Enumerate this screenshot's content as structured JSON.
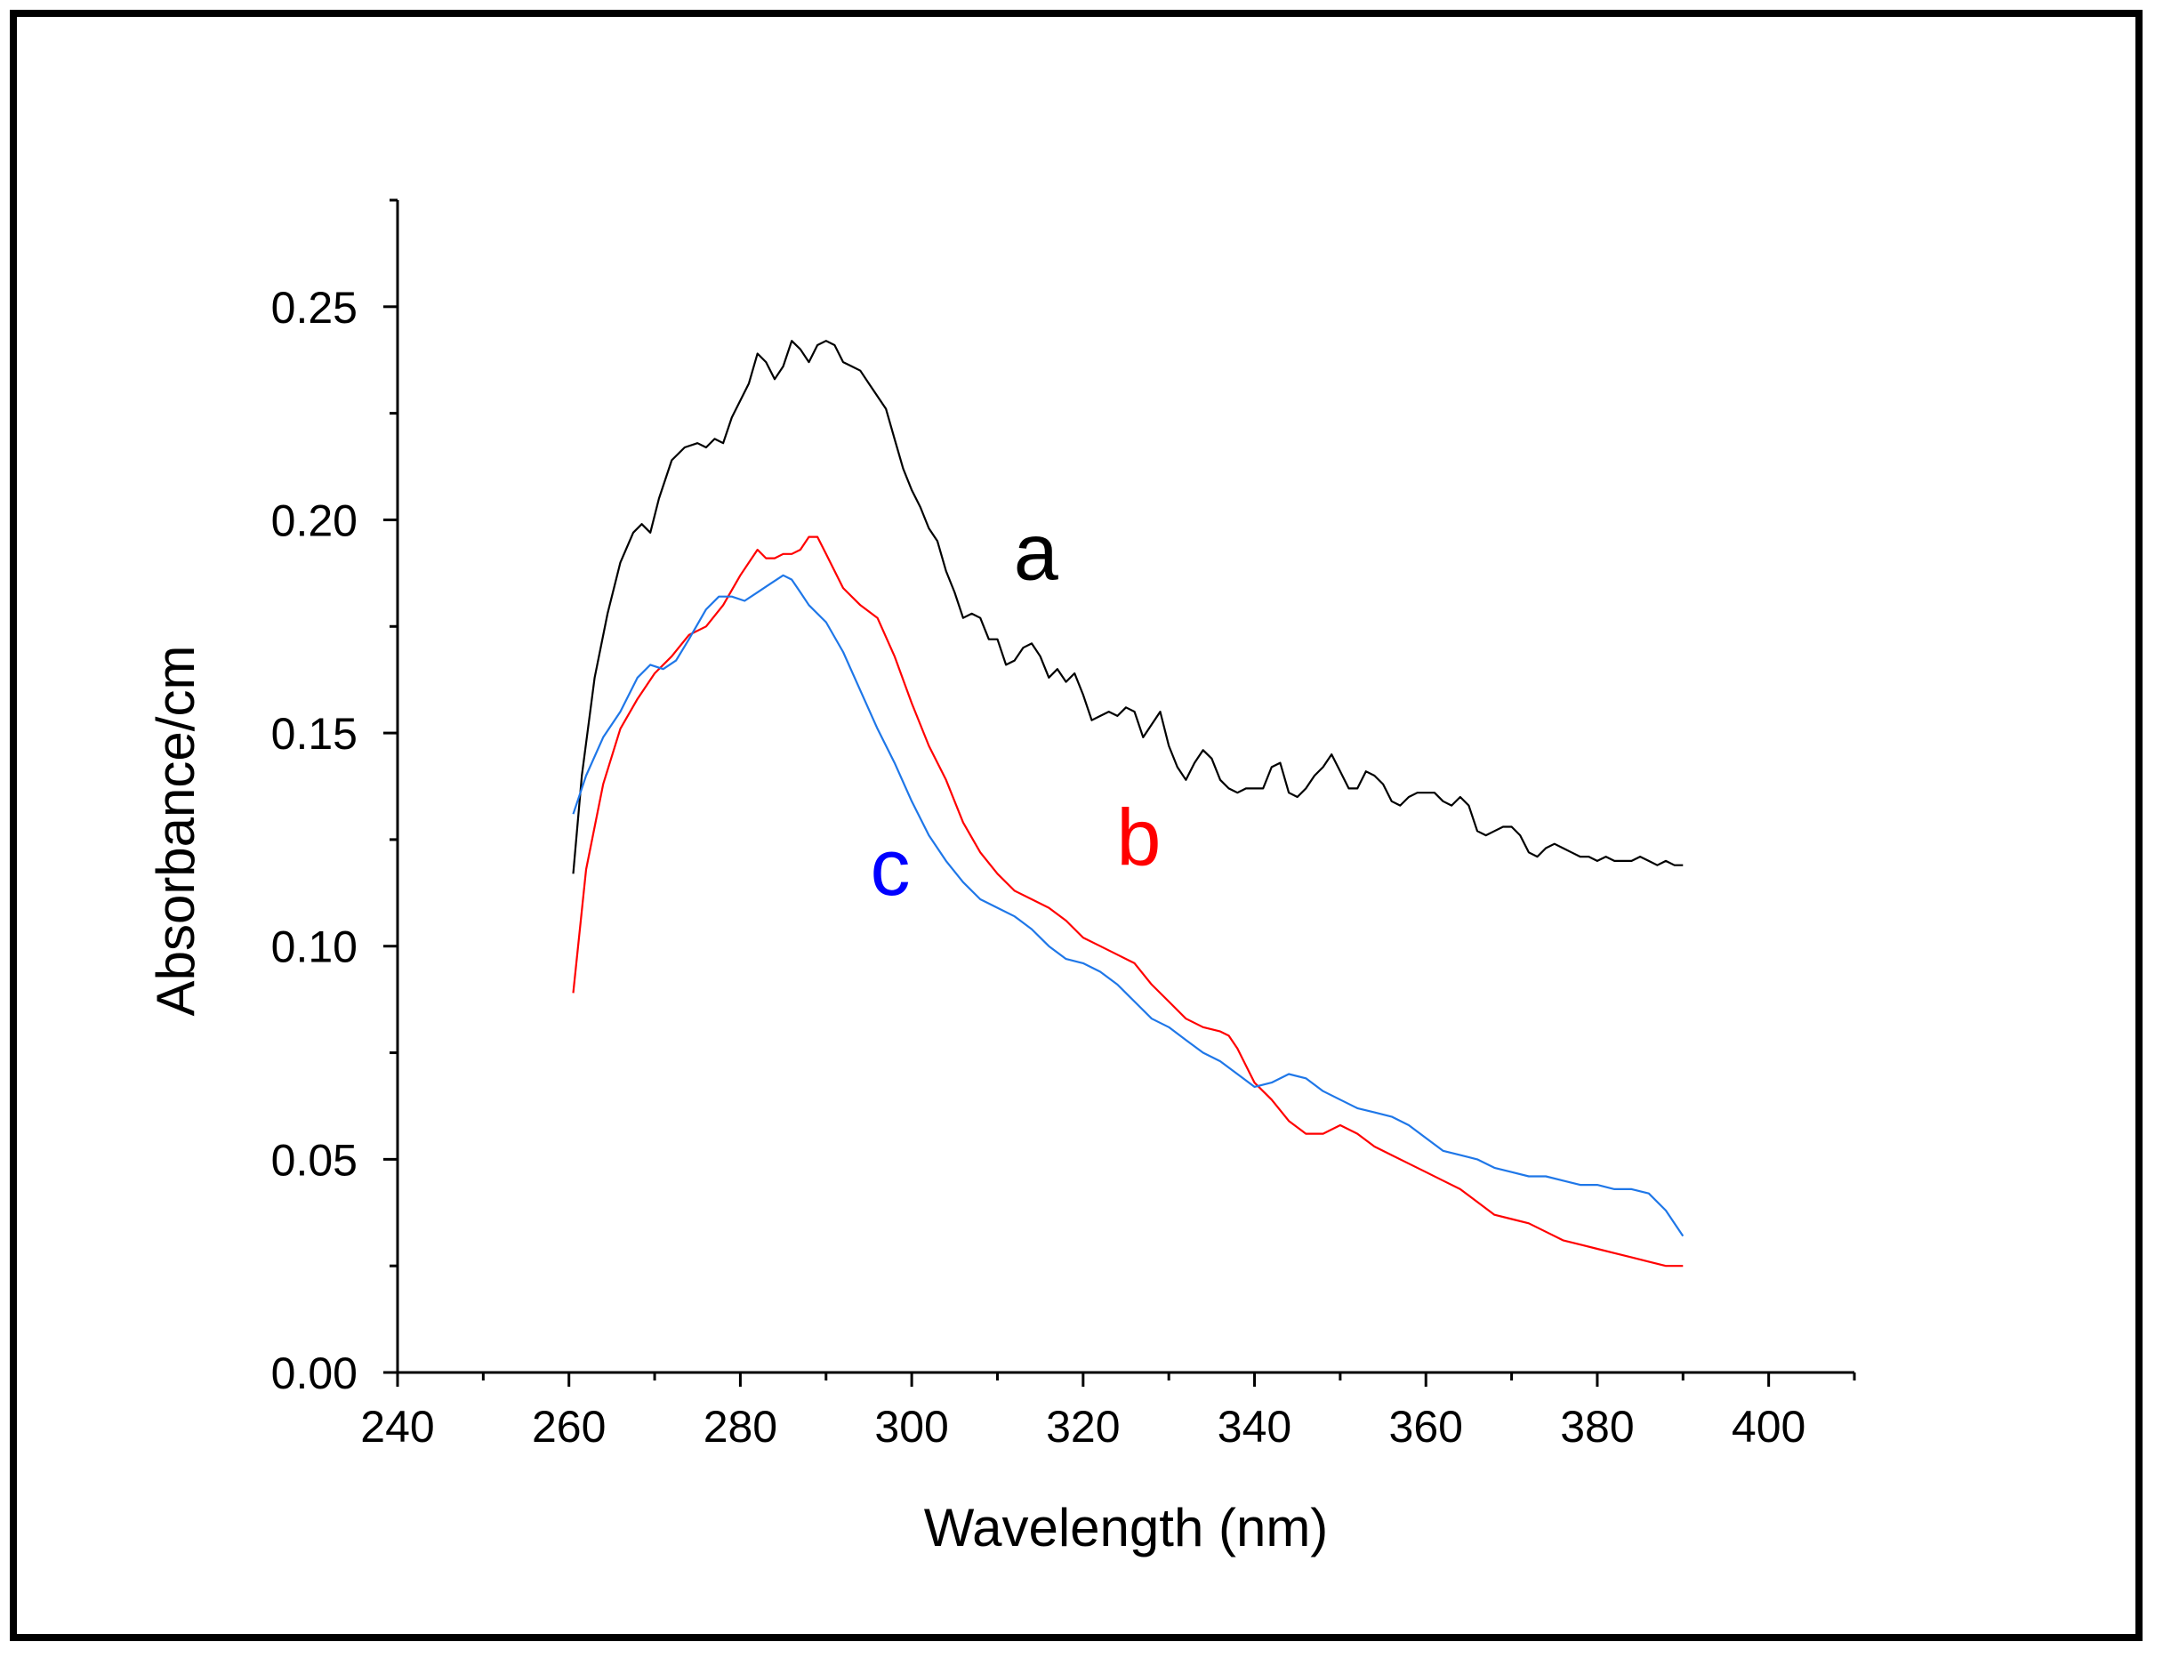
{
  "chart_data": {
    "type": "line",
    "title": "",
    "xlabel": "Wavelength (nm)",
    "ylabel": "Absorbance/cm",
    "xlim": [
      240,
      410
    ],
    "ylim": [
      0,
      0.275
    ],
    "x_major_ticks": [
      240,
      260,
      280,
      300,
      320,
      340,
      360,
      380,
      400
    ],
    "x_minor_ticks": [
      250,
      270,
      290,
      310,
      330,
      350,
      370,
      390,
      410
    ],
    "x_tick_labels": [
      "240",
      "260",
      "280",
      "300",
      "320",
      "340",
      "360",
      "380",
      "400"
    ],
    "y_major_ticks": [
      0,
      0.05,
      0.1,
      0.15,
      0.2,
      0.25
    ],
    "y_minor_ticks": [
      0.025,
      0.075,
      0.125,
      0.175,
      0.225,
      0.275
    ],
    "y_tick_labels": [
      "0.00",
      "0.05",
      "0.10",
      "0.15",
      "0.20",
      "0.25"
    ],
    "grid": false,
    "series": [
      {
        "name": "a",
        "color": "#000000",
        "x": [
          260.5,
          261.5,
          263,
          264.5,
          266,
          267.5,
          268.5,
          269.5,
          270.5,
          272,
          273.5,
          275,
          276,
          277,
          278,
          279,
          280,
          281,
          282,
          283,
          284,
          285,
          286,
          287,
          288,
          289,
          290,
          291,
          292,
          293,
          294,
          295,
          296,
          297,
          298,
          299,
          300,
          301,
          302,
          303,
          304,
          305,
          306,
          307,
          308,
          309,
          310,
          311,
          312,
          313,
          314,
          315,
          316,
          317,
          318,
          319,
          320,
          321,
          322,
          323,
          324,
          325,
          326,
          327,
          328,
          329,
          330,
          331,
          332,
          333,
          334,
          335,
          336,
          337,
          338,
          339,
          340,
          341,
          342,
          343,
          344,
          345,
          346,
          347,
          348,
          349,
          350,
          351,
          352,
          353,
          354,
          355,
          356,
          357,
          358,
          359,
          360,
          361,
          362,
          363,
          364,
          365,
          366,
          367,
          368,
          369,
          370,
          371,
          372,
          373,
          374,
          375,
          376,
          377,
          378,
          379,
          380,
          381,
          382,
          383,
          384,
          385,
          386,
          387,
          388,
          389,
          390
        ],
        "values": [
          0.117,
          0.14,
          0.163,
          0.178,
          0.19,
          0.197,
          0.199,
          0.197,
          0.205,
          0.214,
          0.217,
          0.218,
          0.217,
          0.219,
          0.218,
          0.224,
          0.228,
          0.232,
          0.239,
          0.237,
          0.233,
          0.236,
          0.242,
          0.24,
          0.237,
          0.241,
          0.242,
          0.241,
          0.237,
          0.236,
          0.235,
          0.232,
          0.229,
          0.226,
          0.219,
          0.212,
          0.207,
          0.203,
          0.198,
          0.195,
          0.188,
          0.183,
          0.177,
          0.178,
          0.177,
          0.172,
          0.172,
          0.166,
          0.167,
          0.17,
          0.171,
          0.168,
          0.163,
          0.165,
          0.162,
          0.164,
          0.159,
          0.153,
          0.154,
          0.155,
          0.154,
          0.156,
          0.155,
          0.149,
          0.152,
          0.155,
          0.147,
          0.142,
          0.139,
          0.143,
          0.146,
          0.144,
          0.139,
          0.137,
          0.136,
          0.137,
          0.137,
          0.137,
          0.142,
          0.143,
          0.136,
          0.135,
          0.137,
          0.14,
          0.142,
          0.145,
          0.141,
          0.137,
          0.137,
          0.141,
          0.14,
          0.138,
          0.134,
          0.133,
          0.135,
          0.136,
          0.136,
          0.136,
          0.134,
          0.133,
          0.135,
          0.133,
          0.127,
          0.126,
          0.127,
          0.128,
          0.128,
          0.126,
          0.122,
          0.121,
          0.123,
          0.124,
          0.123,
          0.122,
          0.121,
          0.121,
          0.12,
          0.121,
          0.12,
          0.12,
          0.12,
          0.121,
          0.12,
          0.119,
          0.12,
          0.119,
          0.119
        ]
      },
      {
        "name": "b",
        "color": "#ff0000",
        "x": [
          260.5,
          262,
          264,
          266,
          268,
          270,
          272,
          274,
          276,
          278,
          280,
          282,
          283,
          284,
          285,
          286,
          287,
          288,
          289,
          290,
          292,
          294,
          296,
          298,
          300,
          302,
          304,
          306,
          308,
          310,
          312,
          314,
          316,
          318,
          320,
          322,
          324,
          326,
          328,
          330,
          332,
          334,
          336,
          337,
          338,
          340,
          342,
          344,
          346,
          348,
          350,
          352,
          354,
          356,
          358,
          360,
          362,
          364,
          366,
          368,
          370,
          372,
          374,
          376,
          378,
          380,
          382,
          384,
          386,
          388,
          390
        ],
        "values": [
          0.089,
          0.118,
          0.138,
          0.151,
          0.158,
          0.164,
          0.168,
          0.173,
          0.175,
          0.18,
          0.187,
          0.193,
          0.191,
          0.191,
          0.192,
          0.192,
          0.193,
          0.196,
          0.196,
          0.192,
          0.184,
          0.18,
          0.177,
          0.168,
          0.157,
          0.147,
          0.139,
          0.129,
          0.122,
          0.117,
          0.113,
          0.111,
          0.109,
          0.106,
          0.102,
          0.1,
          0.098,
          0.096,
          0.091,
          0.087,
          0.083,
          0.081,
          0.08,
          0.079,
          0.076,
          0.068,
          0.064,
          0.059,
          0.056,
          0.056,
          0.058,
          0.056,
          0.053,
          0.051,
          0.049,
          0.047,
          0.045,
          0.043,
          0.04,
          0.037,
          0.036,
          0.035,
          0.033,
          0.031,
          0.03,
          0.029,
          0.028,
          0.027,
          0.026,
          0.025,
          0.025
        ]
      },
      {
        "name": "c",
        "color": "#1f77e8",
        "x": [
          260.5,
          262,
          264,
          266,
          268,
          269.5,
          271,
          272.5,
          274,
          276,
          277.5,
          279,
          280.5,
          282,
          283.5,
          285,
          286,
          287,
          288,
          290,
          292,
          294,
          296,
          298,
          300,
          302,
          304,
          306,
          308,
          310,
          312,
          314,
          316,
          318,
          320,
          322,
          324,
          326,
          328,
          330,
          332,
          334,
          336,
          338,
          340,
          342,
          344,
          346,
          348,
          350,
          352,
          354,
          356,
          358,
          360,
          362,
          364,
          366,
          368,
          370,
          372,
          374,
          376,
          378,
          380,
          382,
          384,
          386,
          388,
          390
        ],
        "values": [
          0.131,
          0.14,
          0.149,
          0.155,
          0.163,
          0.166,
          0.165,
          0.167,
          0.172,
          0.179,
          0.182,
          0.182,
          0.181,
          0.183,
          0.185,
          0.187,
          0.186,
          0.183,
          0.18,
          0.176,
          0.169,
          0.16,
          0.151,
          0.143,
          0.134,
          0.126,
          0.12,
          0.115,
          0.111,
          0.109,
          0.107,
          0.104,
          0.1,
          0.097,
          0.096,
          0.094,
          0.091,
          0.087,
          0.083,
          0.081,
          0.078,
          0.075,
          0.073,
          0.07,
          0.067,
          0.068,
          0.07,
          0.069,
          0.066,
          0.064,
          0.062,
          0.061,
          0.06,
          0.058,
          0.055,
          0.052,
          0.051,
          0.05,
          0.048,
          0.047,
          0.046,
          0.046,
          0.045,
          0.044,
          0.044,
          0.043,
          0.043,
          0.042,
          0.038,
          0.032
        ]
      }
    ],
    "annotations": [
      {
        "text": "a",
        "color": "#000000",
        "x": 314.5,
        "y": 0.186
      },
      {
        "text": "b",
        "color": "#ff0000",
        "x": 326.5,
        "y": 0.119
      },
      {
        "text": "c",
        "color": "#0000ff",
        "x": 297.5,
        "y": 0.112
      }
    ]
  }
}
